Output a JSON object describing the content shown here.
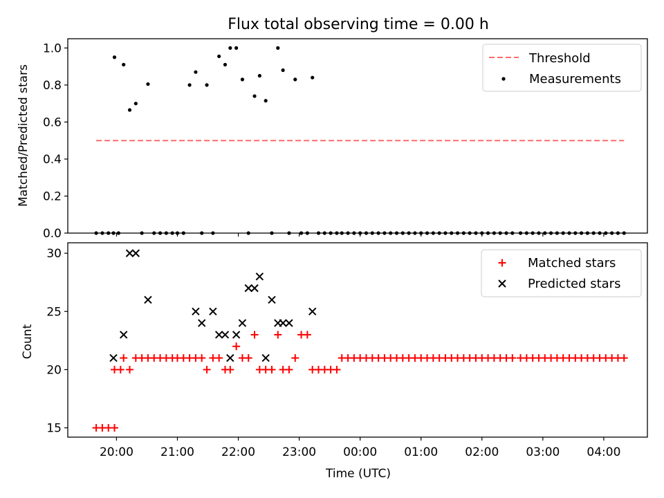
{
  "figure": {
    "title": "Flux total observing time = 0.00 h"
  },
  "colors": {
    "threshold": "#ff6b6b",
    "measurement": "#000000",
    "matched": "#ff0000",
    "predicted": "#000000"
  },
  "chart_data": [
    {
      "type": "scatter",
      "title": "Flux total observing time = 0.00 h",
      "xlabel": "",
      "ylabel": "Matched/Predicted stars",
      "ylim": [
        0,
        1.05
      ],
      "yticks": [
        "0.0",
        "0.2",
        "0.4",
        "0.6",
        "0.8",
        "1.0"
      ],
      "legend_position": "top-right",
      "threshold": {
        "name": "Threshold",
        "value": 0.5,
        "x_start": "19:40",
        "x_end": "04:20",
        "style": "dashed"
      },
      "series": [
        {
          "name": "Measurements",
          "marker": "dot",
          "x": [
            "19:40",
            "19:46",
            "19:52",
            "19:57",
            "19:58",
            "20:02",
            "20:07",
            "20:13",
            "20:19",
            "20:25",
            "20:31",
            "20:37",
            "20:43",
            "20:49",
            "20:55",
            "21:00",
            "21:06",
            "21:12",
            "21:18",
            "21:24",
            "21:29",
            "21:35",
            "21:41",
            "21:47",
            "21:52",
            "21:58",
            "22:04",
            "22:10",
            "22:16",
            "22:21",
            "22:27",
            "22:33",
            "22:39",
            "22:44",
            "22:50",
            "22:56",
            "23:02",
            "23:08",
            "23:13",
            "23:19",
            "23:25",
            "23:31",
            "23:37",
            "23:42",
            "23:48",
            "23:54",
            "00:00",
            "00:06",
            "00:12",
            "00:18",
            "00:24",
            "00:30",
            "00:36",
            "00:42",
            "00:48",
            "00:54",
            "01:00",
            "01:06",
            "01:12",
            "01:18",
            "01:24",
            "01:30",
            "01:36",
            "01:42",
            "01:48",
            "01:54",
            "02:00",
            "02:06",
            "02:12",
            "02:18",
            "02:24",
            "02:30",
            "02:38",
            "02:44",
            "02:50",
            "02:56",
            "03:02",
            "03:08",
            "03:14",
            "03:20",
            "03:26",
            "03:32",
            "03:38",
            "03:44",
            "03:50",
            "03:56",
            "04:02",
            "04:08",
            "04:14",
            "04:20"
          ],
          "y": [
            0,
            0,
            0,
            0,
            0.95,
            0,
            0.91,
            0.665,
            0.7,
            0,
            0.805,
            0,
            0,
            0,
            0,
            0,
            0,
            0.8,
            0.87,
            0,
            0.8,
            0,
            0.955,
            0.91,
            1.0,
            1.0,
            0.83,
            0,
            0.74,
            0.85,
            0.715,
            0,
            1.0,
            0.88,
            0,
            0.83,
            0,
            0,
            0.84,
            0,
            0,
            0,
            0,
            0,
            0,
            0,
            0,
            0,
            0,
            0,
            0,
            0,
            0,
            0,
            0,
            0,
            0,
            0,
            0,
            0,
            0,
            0,
            0,
            0,
            0,
            0,
            0,
            0,
            0,
            0,
            0,
            0,
            0,
            0,
            0,
            0,
            0,
            0,
            0,
            0,
            0,
            0,
            0,
            0,
            0,
            0,
            0,
            0,
            0,
            0
          ]
        }
      ]
    },
    {
      "type": "scatter",
      "xlabel": "Time (UTC)",
      "ylabel": "Count",
      "ylim": [
        14.2,
        30.9
      ],
      "yticks": [
        "15",
        "20",
        "25",
        "30"
      ],
      "xlim": [
        "19:12",
        "04:43"
      ],
      "xticks": [
        "20:00",
        "21:00",
        "22:00",
        "23:00",
        "00:00",
        "01:00",
        "02:00",
        "03:00",
        "04:00"
      ],
      "legend_position": "top-right",
      "series": [
        {
          "name": "Matched stars",
          "marker": "plus",
          "x": [
            "19:40",
            "19:46",
            "19:52",
            "19:58",
            "19:58",
            "20:04",
            "20:07",
            "20:13",
            "20:19",
            "20:25",
            "20:31",
            "20:37",
            "20:43",
            "20:49",
            "20:55",
            "21:00",
            "21:06",
            "21:12",
            "21:18",
            "21:24",
            "21:29",
            "21:35",
            "21:41",
            "21:47",
            "21:52",
            "21:58",
            "22:04",
            "22:10",
            "22:16",
            "22:21",
            "22:27",
            "22:33",
            "22:39",
            "22:44",
            "22:50",
            "22:56",
            "23:02",
            "23:08",
            "23:13",
            "23:19",
            "23:25",
            "23:31",
            "23:37",
            "23:42",
            "23:48",
            "23:54",
            "00:00",
            "00:06",
            "00:12",
            "00:18",
            "00:24",
            "00:30",
            "00:36",
            "00:42",
            "00:48",
            "00:54",
            "01:00",
            "01:06",
            "01:12",
            "01:18",
            "01:24",
            "01:30",
            "01:36",
            "01:42",
            "01:48",
            "01:54",
            "02:00",
            "02:06",
            "02:12",
            "02:18",
            "02:24",
            "02:30",
            "02:38",
            "02:44",
            "02:50",
            "02:56",
            "03:02",
            "03:08",
            "03:14",
            "03:20",
            "03:26",
            "03:32",
            "03:38",
            "03:44",
            "03:50",
            "03:56",
            "04:02",
            "04:08",
            "04:14",
            "04:20"
          ],
          "y": [
            15,
            15,
            15,
            15,
            20,
            20,
            21,
            20,
            21,
            21,
            21,
            21,
            21,
            21,
            21,
            21,
            21,
            21,
            21,
            21,
            20,
            21,
            21,
            20,
            20,
            22,
            21,
            21,
            23,
            20,
            20,
            20,
            23,
            20,
            20,
            21,
            23,
            23,
            20,
            20,
            20,
            20,
            20,
            21,
            21,
            21,
            21,
            21,
            21,
            21,
            21,
            21,
            21,
            21,
            21,
            21,
            21,
            21,
            21,
            21,
            21,
            21,
            21,
            21,
            21,
            21,
            21,
            21,
            21,
            21,
            21,
            21,
            21,
            21,
            21,
            21,
            21,
            21,
            21,
            21,
            21,
            21,
            21,
            21,
            21,
            21,
            21,
            21,
            21,
            21
          ]
        },
        {
          "name": "Predicted stars",
          "marker": "x",
          "x": [
            "19:57",
            "20:07",
            "20:13",
            "20:19",
            "20:31",
            "21:18",
            "21:24",
            "21:35",
            "21:41",
            "21:47",
            "21:52",
            "21:58",
            "22:04",
            "22:10",
            "22:16",
            "22:21",
            "22:27",
            "22:33",
            "22:39",
            "22:44",
            "22:50",
            "23:13"
          ],
          "y": [
            21,
            23,
            30,
            30,
            26,
            25,
            24,
            25,
            23,
            23,
            21,
            23,
            24,
            27,
            27,
            28,
            21,
            26,
            24,
            24,
            24,
            25
          ]
        }
      ]
    }
  ]
}
